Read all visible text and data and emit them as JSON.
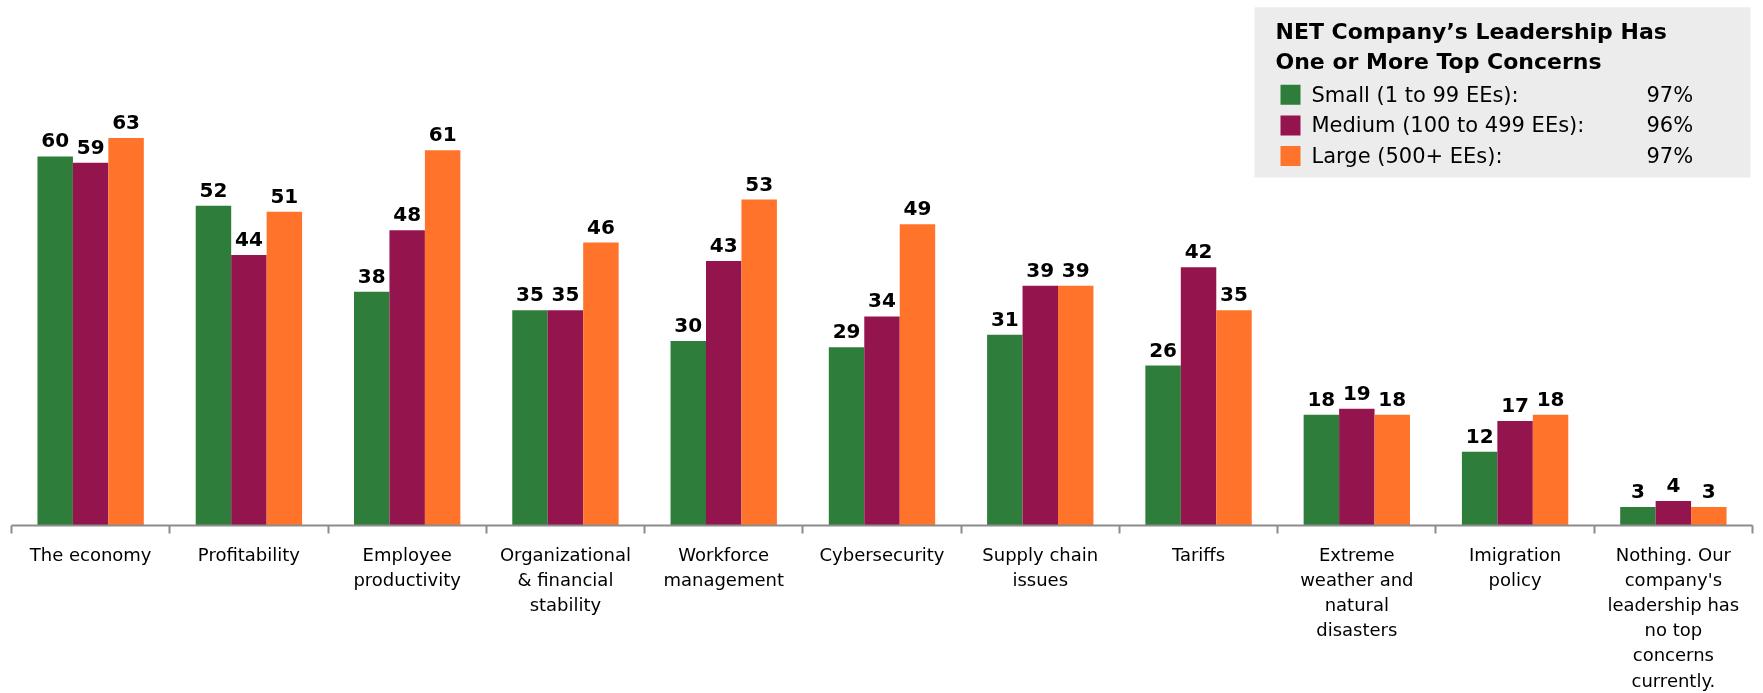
{
  "chart_data": {
    "type": "bar",
    "categories": [
      "The economy",
      "Profitability",
      "Employee productivity",
      "Organizational & financial stability",
      "Workforce management",
      "Cybersecurity",
      "Supply chain issues",
      "Tariffs",
      "Extreme weather and natural disasters",
      "Imigration policy",
      "Nothing. Our company's leadership has no top concerns currently."
    ],
    "series": [
      {
        "name": "Small (1 to 99 EEs):",
        "color": "#2e7d3a",
        "values": [
          60,
          52,
          38,
          35,
          30,
          29,
          31,
          26,
          18,
          12,
          3
        ]
      },
      {
        "name": "Medium (100 to 499 EEs):",
        "color": "#94144e",
        "values": [
          59,
          44,
          48,
          35,
          43,
          34,
          39,
          42,
          19,
          17,
          4
        ]
      },
      {
        "name": "Large (500+ EEs):",
        "color": "#ff732b",
        "values": [
          63,
          51,
          61,
          46,
          53,
          49,
          39,
          35,
          18,
          18,
          3
        ]
      }
    ],
    "legend_title": "NET Company’s Leadership Has One or More Top Concerns",
    "annotations": [
      "97%",
      "96%",
      "97%"
    ],
    "legend": "top right",
    "data_labels": true,
    "tick_labels": "x"
  }
}
